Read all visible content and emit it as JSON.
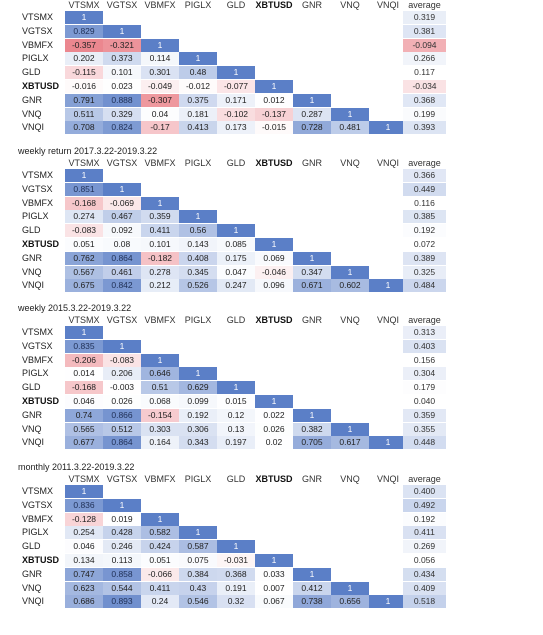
{
  "columns": [
    "VTSMX",
    "VGTSX",
    "VBMFX",
    "PIGLX",
    "GLD",
    "XBTUSD",
    "GNR",
    "VNQ",
    "VNQI"
  ],
  "average_label": "average",
  "bold_ticker": "XBTUSD",
  "colors": {
    "positive_max": "#5b7fc7",
    "negative_max": "#e8737c",
    "neutral": "#ffffff"
  },
  "sections": [
    {
      "title": "",
      "matrix": [
        [
          "1"
        ],
        [
          "0.829",
          "1"
        ],
        [
          "-0.357",
          "-0.321",
          "1"
        ],
        [
          "0.202",
          "0.373",
          "0.114",
          "1"
        ],
        [
          "-0.115",
          "0.101",
          "0.301",
          "0.48",
          "1"
        ],
        [
          "-0.016",
          "0.023",
          "-0.049",
          "-0.012",
          "-0.077",
          "1"
        ],
        [
          "0.791",
          "0.888",
          "-0.307",
          "0.375",
          "0.171",
          "0.012",
          "1"
        ],
        [
          "0.511",
          "0.329",
          "0.04",
          "0.181",
          "-0.102",
          "-0.137",
          "0.287",
          "1"
        ],
        [
          "0.708",
          "0.824",
          "-0.17",
          "0.413",
          "0.173",
          "-0.015",
          "0.728",
          "0.481",
          "1"
        ]
      ],
      "averages": [
        "0.319",
        "0.381",
        "-0.094",
        "0.266",
        "0.117",
        "-0.034",
        "0.368",
        "0.199",
        "0.393"
      ]
    },
    {
      "title": "weekly return 2017.3.22-2019.3.22",
      "matrix": [
        [
          "1"
        ],
        [
          "0.851",
          "1"
        ],
        [
          "-0.168",
          "-0.069",
          "1"
        ],
        [
          "0.274",
          "0.467",
          "0.359",
          "1"
        ],
        [
          "-0.083",
          "0.092",
          "0.411",
          "0.56",
          "1"
        ],
        [
          "0.051",
          "0.08",
          "0.101",
          "0.143",
          "0.085",
          "1"
        ],
        [
          "0.762",
          "0.864",
          "-0.182",
          "0.408",
          "0.175",
          "0.069",
          "1"
        ],
        [
          "0.567",
          "0.461",
          "0.278",
          "0.345",
          "0.047",
          "-0.046",
          "0.347",
          "1"
        ],
        [
          "0.675",
          "0.842",
          "0.212",
          "0.526",
          "0.247",
          "0.096",
          "0.671",
          "0.602",
          "1"
        ]
      ],
      "averages": [
        "0.366",
        "0.449",
        "0.116",
        "0.385",
        "0.192",
        "0.072",
        "0.389",
        "0.325",
        "0.484"
      ]
    },
    {
      "title": "weekly 2015.3.22-2019.3.22",
      "matrix": [
        [
          "1"
        ],
        [
          "0.835",
          "1"
        ],
        [
          "-0.206",
          "-0.083",
          "1"
        ],
        [
          "0.014",
          "0.206",
          "0.646",
          "1"
        ],
        [
          "-0.168",
          "-0.003",
          "0.51",
          "0.629",
          "1"
        ],
        [
          "0.046",
          "0.026",
          "0.068",
          "0.099",
          "0.015",
          "1"
        ],
        [
          "0.74",
          "0.866",
          "-0.154",
          "0.192",
          "0.12",
          "0.022",
          "1"
        ],
        [
          "0.565",
          "0.512",
          "0.303",
          "0.306",
          "0.13",
          "0.026",
          "0.382",
          "1"
        ],
        [
          "0.677",
          "0.864",
          "0.164",
          "0.343",
          "0.197",
          "0.02",
          "0.705",
          "0.617",
          "1"
        ]
      ],
      "averages": [
        "0.313",
        "0.403",
        "0.156",
        "0.304",
        "0.179",
        "0.040",
        "0.359",
        "0.355",
        "0.448"
      ]
    },
    {
      "title": "monthly 2011.3.22-2019.3.22",
      "matrix": [
        [
          "1"
        ],
        [
          "0.836",
          "1"
        ],
        [
          "-0.128",
          "0.019",
          "1"
        ],
        [
          "0.254",
          "0.428",
          "0.582",
          "1"
        ],
        [
          "0.046",
          "0.246",
          "0.424",
          "0.587",
          "1"
        ],
        [
          "0.134",
          "0.113",
          "0.051",
          "0.075",
          "-0.031",
          "1"
        ],
        [
          "0.747",
          "0.858",
          "-0.066",
          "0.384",
          "0.368",
          "0.033",
          "1"
        ],
        [
          "0.623",
          "0.544",
          "0.411",
          "0.43",
          "0.191",
          "0.007",
          "0.412",
          "1"
        ],
        [
          "0.686",
          "0.893",
          "0.24",
          "0.546",
          "0.32",
          "0.067",
          "0.738",
          "0.656",
          "1"
        ]
      ],
      "averages": [
        "0.400",
        "0.492",
        "0.192",
        "0.411",
        "0.269",
        "0.056",
        "0.434",
        "0.409",
        "0.518"
      ]
    }
  ]
}
